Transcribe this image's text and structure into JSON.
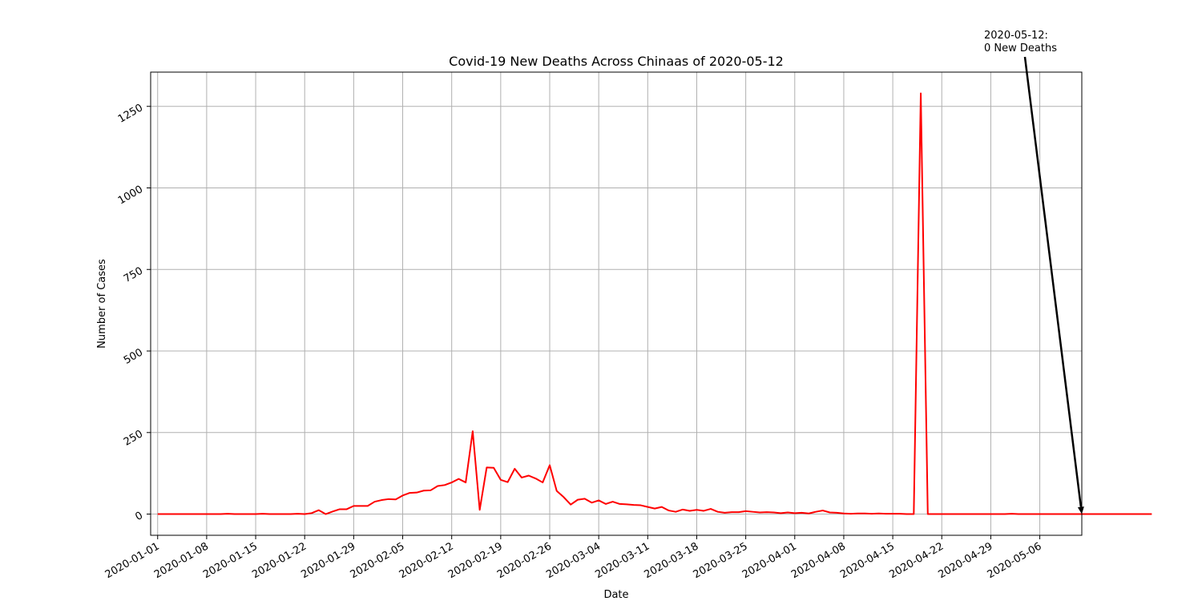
{
  "chart_data": {
    "type": "line",
    "title": "Covid-19 New Deaths Across Chinaas of 2020-05-12",
    "xlabel": "Date",
    "ylabel": "Number of Cases",
    "x_tick_labels": [
      "2020-01-01",
      "2020-01-08",
      "2020-01-15",
      "2020-01-22",
      "2020-01-29",
      "2020-02-05",
      "2020-02-12",
      "2020-02-19",
      "2020-02-26",
      "2020-03-04",
      "2020-03-11",
      "2020-03-18",
      "2020-03-25",
      "2020-04-01",
      "2020-04-08",
      "2020-04-15",
      "2020-04-22",
      "2020-04-29",
      "2020-05-06"
    ],
    "y_ticks": [
      0,
      250,
      500,
      750,
      1000,
      1250
    ],
    "xlim": [
      "2019-12-31",
      "2020-05-12"
    ],
    "ylim": [
      -65,
      1355
    ],
    "grid": true,
    "line_color": "#ff0000",
    "series": [
      {
        "x_start": "2020-01-01",
        "values": [
          0,
          0,
          0,
          0,
          0,
          0,
          0,
          0,
          0,
          0,
          1,
          0,
          0,
          0,
          0,
          1,
          0,
          0,
          0,
          0,
          1,
          0,
          3,
          12,
          0,
          8,
          15,
          15,
          25,
          25,
          25,
          38,
          43,
          46,
          45,
          57,
          65,
          66,
          72,
          73,
          86,
          89,
          97,
          108,
          97,
          254,
          13,
          143,
          142,
          105,
          98,
          139,
          112,
          118,
          109,
          97,
          150,
          71,
          52,
          29,
          44,
          47,
          35,
          42,
          31,
          38,
          31,
          30,
          28,
          27,
          22,
          17,
          22,
          11,
          7,
          14,
          10,
          13,
          10,
          16,
          7,
          4,
          6,
          6,
          9,
          7,
          5,
          6,
          5,
          3,
          5,
          3,
          4,
          2,
          7,
          11,
          5,
          4,
          2,
          1,
          2,
          2,
          1,
          2,
          1,
          1,
          1,
          0,
          0,
          1290,
          0,
          0,
          0,
          0,
          0,
          0,
          0,
          0,
          0,
          0,
          0,
          0,
          1,
          0,
          0,
          0,
          0,
          0,
          0,
          0,
          0,
          0,
          0,
          0,
          0,
          0,
          0,
          0,
          0,
          0,
          0,
          0,
          0
        ]
      }
    ],
    "annotation": {
      "text_line1": "2020-05-12:",
      "text_line2": "0 New Deaths",
      "target_date": "2020-05-12",
      "target_value": 0
    }
  }
}
